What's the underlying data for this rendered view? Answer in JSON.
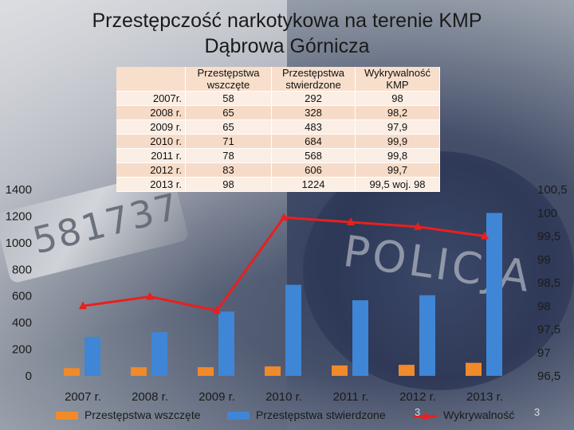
{
  "title_line1": "Przestępczość narkotykowa na terenie KMP",
  "title_line2": "Dąbrowa Górnicza",
  "slide_number": "3",
  "slide_number_overlay": "3",
  "background_badge_text": "581737",
  "background_police_text": "POLICJA",
  "colors": {
    "series1": "#f08a2a",
    "series2": "#3f86d6",
    "series3": "#e8201e"
  },
  "table": {
    "headers": [
      "",
      "Przestępstwa wszczęte",
      "Przestępstwa stwierdzone",
      "Wykrywalność KMP"
    ],
    "rows": [
      [
        "2007r.",
        "58",
        "292",
        "98"
      ],
      [
        "2008 r.",
        "65",
        "328",
        "98,2"
      ],
      [
        "2009 r.",
        "65",
        "483",
        "97,9"
      ],
      [
        "2010 r.",
        "71",
        "684",
        "99,9"
      ],
      [
        "2011 r.",
        "78",
        "568",
        "99,8"
      ],
      [
        "2012 r.",
        "83",
        "606",
        "99,7"
      ],
      [
        "2013 r.",
        "98",
        "1224",
        "99,5 woj. 98"
      ]
    ]
  },
  "chart_data": {
    "type": "bar",
    "categories": [
      "2007 r.",
      "2008 r.",
      "2009 r.",
      "2010 r.",
      "2011 r.",
      "2012 r.",
      "2013 r."
    ],
    "series": [
      {
        "name": "Przestępstwa wszczęte",
        "type": "bar",
        "axis": "left",
        "values": [
          58,
          65,
          65,
          71,
          78,
          83,
          98
        ]
      },
      {
        "name": "Przestępstwa stwierdzone",
        "type": "bar",
        "axis": "left",
        "values": [
          292,
          328,
          483,
          684,
          568,
          606,
          1224
        ]
      },
      {
        "name": "Wykrywalność",
        "type": "line",
        "axis": "right",
        "values": [
          98,
          98.2,
          97.9,
          99.9,
          99.8,
          99.7,
          99.5
        ]
      }
    ],
    "ylim": [
      0,
      1400
    ],
    "yticks": [
      "0",
      "200",
      "400",
      "600",
      "800",
      "1000",
      "1200",
      "1400"
    ],
    "y2lim": [
      96.5,
      100.5
    ],
    "y2ticks": [
      "96,5",
      "97",
      "97,5",
      "98",
      "98,5",
      "99",
      "99,5",
      "100",
      "100,5"
    ],
    "legend_position": "bottom",
    "legend": [
      "Przestępstwa wszczęte",
      "Przestępstwa stwierdzone",
      "Wykrywalność"
    ]
  }
}
